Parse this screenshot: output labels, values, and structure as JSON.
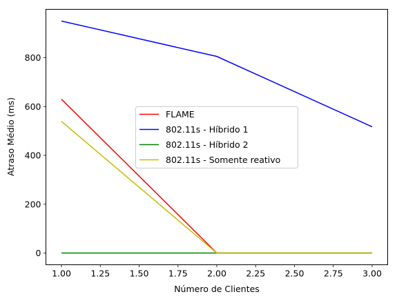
{
  "chart_data": {
    "type": "line",
    "title": "",
    "xlabel": "Número de Clientes",
    "ylabel": "Atraso Médio (ms)",
    "x": [
      1.0,
      2.0,
      3.0
    ],
    "xlim": [
      0.9,
      3.1
    ],
    "ylim": [
      -48,
      998
    ],
    "xticks": [
      1.0,
      1.25,
      1.5,
      1.75,
      2.0,
      2.25,
      2.5,
      2.75,
      3.0
    ],
    "xtick_labels": [
      "1.00",
      "1.25",
      "1.50",
      "1.75",
      "2.00",
      "2.25",
      "2.50",
      "2.75",
      "3.00"
    ],
    "yticks": [
      0,
      200,
      400,
      600,
      800
    ],
    "ytick_labels": [
      "0",
      "200",
      "400",
      "600",
      "800"
    ],
    "grid": false,
    "legend_position": "center",
    "series": [
      {
        "name": "FLAME",
        "color": "#ff0000",
        "values": [
          630,
          0,
          0
        ]
      },
      {
        "name": "802.11s - Híbrido 1",
        "color": "#0000ff",
        "values": [
          950,
          805,
          517
        ]
      },
      {
        "name": "802.11s - Híbrido 2",
        "color": "#008000",
        "values": [
          0,
          0,
          0
        ]
      },
      {
        "name": "802.11s - Somente reativo",
        "color": "#bfbf00",
        "values": [
          539,
          0,
          0
        ]
      }
    ]
  }
}
